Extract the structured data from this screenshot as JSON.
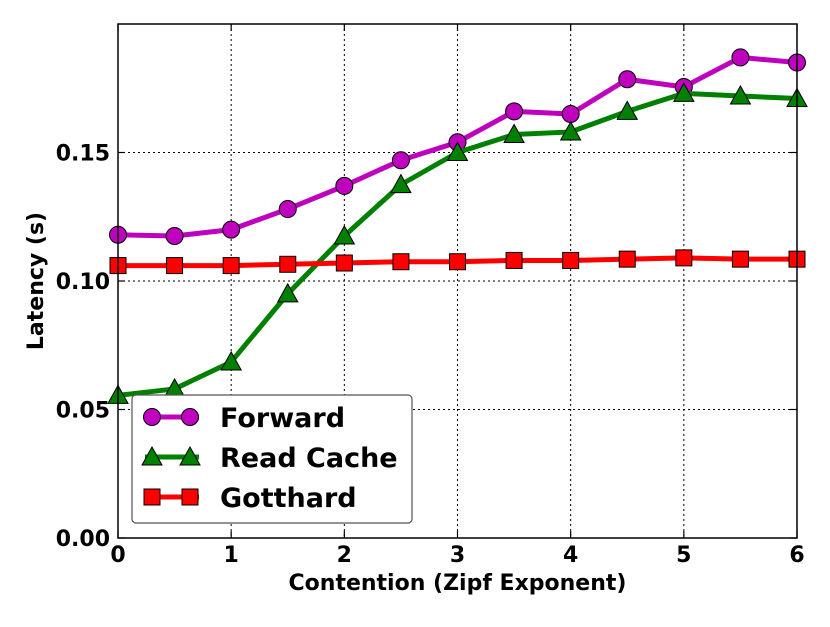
{
  "chart_data": {
    "type": "line",
    "xlabel": "Contention (Zipf Exponent)",
    "ylabel": "Latency (s)",
    "xlim": [
      0,
      6
    ],
    "ylim": [
      0,
      0.2
    ],
    "grid": true,
    "legend_position": "bottom-left",
    "x": [
      0,
      0.5,
      1,
      1.5,
      2,
      2.5,
      3,
      3.5,
      4,
      4.5,
      5,
      5.5,
      6
    ],
    "x_ticks": [
      0,
      1,
      2,
      3,
      4,
      5,
      6
    ],
    "x_tick_labels": [
      "0",
      "1",
      "2",
      "3",
      "4",
      "5",
      "6"
    ],
    "y_ticks": [
      0,
      0.05,
      0.1,
      0.15
    ],
    "y_tick_labels": [
      "0.00",
      "0.05",
      "0.10",
      "0.15"
    ],
    "series": [
      {
        "name": "Forward",
        "color": "#bf00bf",
        "marker": "circle",
        "values": [
          0.118,
          0.1175,
          0.12,
          0.128,
          0.137,
          0.147,
          0.154,
          0.166,
          0.165,
          0.1785,
          0.1755,
          0.187,
          0.185
        ]
      },
      {
        "name": "Read Cache",
        "color": "#008000",
        "marker": "triangle",
        "values": [
          0.0555,
          0.058,
          0.0685,
          0.095,
          0.1175,
          0.1375,
          0.15,
          0.157,
          0.158,
          0.166,
          0.173,
          0.172,
          0.171
        ]
      },
      {
        "name": "Gotthard",
        "color": "#ff0000",
        "marker": "square",
        "values": [
          0.106,
          0.106,
          0.106,
          0.1065,
          0.107,
          0.1075,
          0.1075,
          0.108,
          0.108,
          0.1085,
          0.109,
          0.1085,
          0.1085
        ]
      }
    ]
  }
}
